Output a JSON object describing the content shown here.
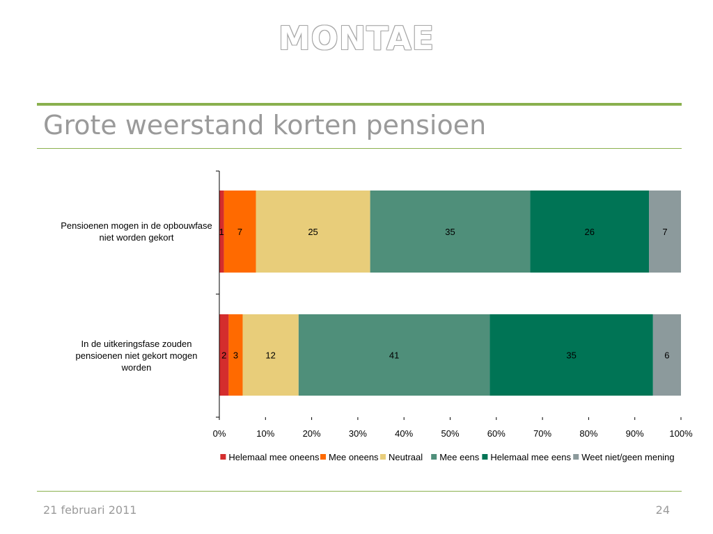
{
  "slide": {
    "logo_text": "MONTAE",
    "title": "Grote weerstand korten pensioen",
    "date": "21 februari 2011",
    "page_number": "24"
  },
  "chart_data": {
    "type": "bar",
    "orientation": "horizontal",
    "stacked": "percent",
    "categories": [
      "Pensioenen mogen in de opbouwfase niet worden gekort",
      "In de uitkeringsfase zouden pensioenen niet gekort mogen worden"
    ],
    "series": [
      {
        "name": "Helemaal mee oneens",
        "color": "#d42d2d",
        "values": [
          1,
          2
        ]
      },
      {
        "name": "Mee oneens",
        "color": "#ff6a00",
        "values": [
          7,
          3
        ]
      },
      {
        "name": "Neutraal",
        "color": "#e8cd7a",
        "values": [
          25,
          12
        ]
      },
      {
        "name": "Mee eens",
        "color": "#4f8f7a",
        "values": [
          35,
          41
        ]
      },
      {
        "name": "Helemaal mee eens",
        "color": "#007455",
        "values": [
          26,
          35
        ]
      },
      {
        "name": "Weet niet/geen mening",
        "color": "#8c9a9c",
        "values": [
          7,
          6
        ]
      }
    ],
    "x_ticks": [
      "0%",
      "10%",
      "20%",
      "30%",
      "40%",
      "50%",
      "60%",
      "70%",
      "80%",
      "90%",
      "100%"
    ],
    "xlim": [
      0,
      100
    ],
    "grid": false,
    "legend_position": "bottom"
  }
}
